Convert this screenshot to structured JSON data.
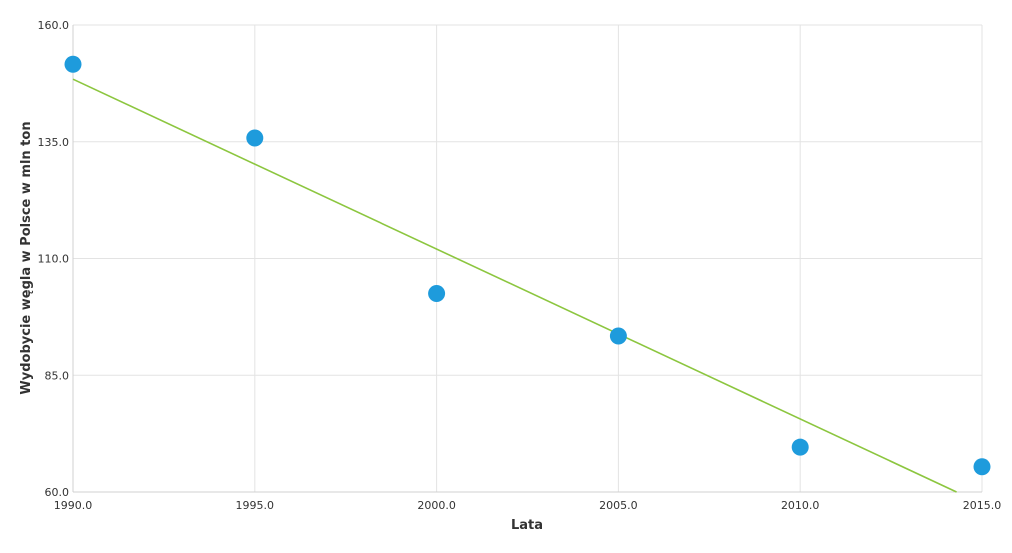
{
  "chart_data": {
    "type": "scatter",
    "title": "",
    "xlabel": "Lata",
    "ylabel": "Wydobycie węgla w Polsce w mln ton",
    "xlim": [
      1990,
      2015
    ],
    "ylim": [
      60,
      160
    ],
    "xticks": [
      "1990.0",
      "1995.0",
      "2000.0",
      "2005.0",
      "2010.0",
      "2015.0"
    ],
    "yticks": [
      "60.0",
      "85.0",
      "110.0",
      "135.0",
      "160.0"
    ],
    "grid": true,
    "series": [
      {
        "x": [
          1990,
          1995,
          2000,
          2005,
          2010,
          2015
        ],
        "y": [
          151.6,
          135.8,
          102.5,
          93.4,
          69.6,
          65.4
        ],
        "color": "#1e9bdc"
      }
    ],
    "trendline": {
      "x": [
        1990,
        2014.3
      ],
      "y": [
        148.4,
        60.0
      ],
      "color": "#8cc63f"
    }
  }
}
